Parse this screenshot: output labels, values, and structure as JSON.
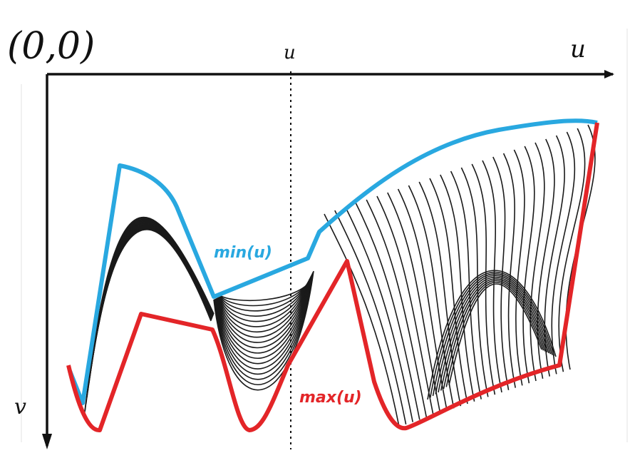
{
  "origin_label": "(0,0)",
  "u_mark_label": "u",
  "u_axis_label": "u",
  "v_axis_label": "v",
  "min_label": "min(u)",
  "max_label": "max(u)",
  "colors": {
    "min_curve": "#29a8e0",
    "max_curve": "#e32528",
    "axes": "#111111",
    "hatching": "#1a1a1a"
  }
}
